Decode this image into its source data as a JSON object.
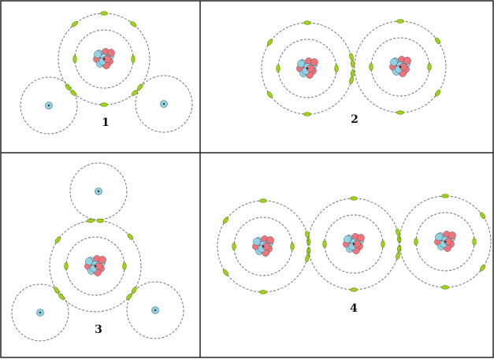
{
  "panels": [
    {
      "label": "1"
    },
    {
      "label": "2"
    },
    {
      "label": "3"
    },
    {
      "label": "4"
    }
  ]
}
